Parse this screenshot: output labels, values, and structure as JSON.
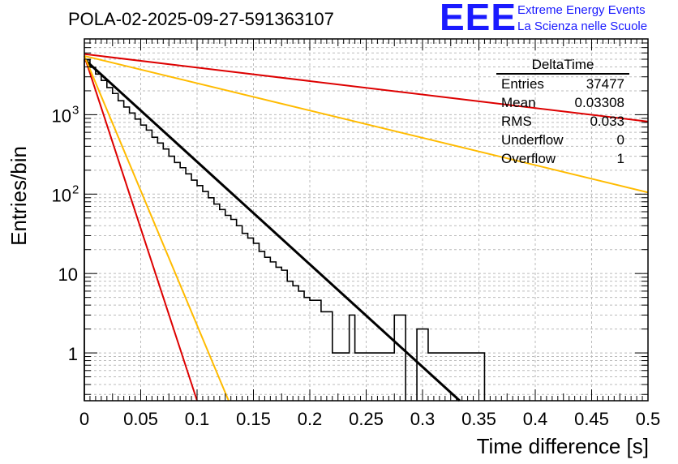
{
  "chart_data": {
    "type": "histogram",
    "title": "POLA-02-2025-09-27-591363107",
    "xlabel": "Time difference [s]",
    "ylabel": "Entries/bin",
    "xlim": [
      0,
      0.5
    ],
    "ylim": [
      0.25,
      9000
    ],
    "yscale": "log",
    "grid": true,
    "x_ticks": [
      "0",
      "0.05",
      "0.1",
      "0.15",
      "0.2",
      "0.25",
      "0.3",
      "0.35",
      "0.4",
      "0.45",
      "0.5"
    ],
    "x_tick_values": [
      0,
      0.05,
      0.1,
      0.15,
      0.2,
      0.25,
      0.3,
      0.35,
      0.4,
      0.45,
      0.5
    ],
    "y_ticks": [
      {
        "value": 1,
        "base": "1",
        "exp": ""
      },
      {
        "value": 10,
        "base": "10",
        "exp": ""
      },
      {
        "value": 100,
        "base": "10",
        "exp": "2"
      },
      {
        "value": 1000,
        "base": "10",
        "exp": "3"
      }
    ],
    "histogram": {
      "name": "DeltaTime",
      "bin_width": 0.005,
      "x_start": 0,
      "counts": [
        4900,
        3950,
        3250,
        2700,
        2200,
        1850,
        1500,
        1250,
        1050,
        880,
        740,
        640,
        520,
        440,
        370,
        300,
        250,
        215,
        180,
        150,
        128,
        108,
        90,
        75,
        64,
        54,
        48,
        40,
        32,
        28,
        24,
        19,
        16,
        14,
        12,
        11,
        8,
        7,
        6,
        5,
        4.6,
        4.6,
        3.3,
        3.3,
        1,
        1,
        1,
        3,
        1,
        1,
        1,
        1,
        1,
        1,
        1,
        3,
        3,
        0,
        0,
        2,
        2,
        1,
        1,
        1,
        1,
        1,
        1,
        1,
        1,
        1,
        1,
        0,
        0,
        0,
        0,
        0,
        0,
        0,
        0,
        0,
        0,
        0,
        0,
        0,
        0,
        0,
        0,
        0,
        0,
        0,
        0,
        0,
        0,
        0,
        0,
        0,
        0,
        0,
        0,
        0
      ]
    },
    "fit_lines": [
      {
        "name": "exponential fit",
        "color": "#000000",
        "x0": 0,
        "y0": 5000,
        "x1": 0.333,
        "y1": 0.25
      },
      {
        "name": "upper bound (fast)",
        "color": "#dd0000",
        "x0": 0,
        "y0": 5500,
        "x1": 0.1,
        "y1": 0.25
      },
      {
        "name": "mid bound (fast)",
        "color": "#ffbb00",
        "x0": 0,
        "y0": 5500,
        "x1": 0.128,
        "y1": 0.25
      },
      {
        "name": "mid bound (slow)",
        "color": "#ffbb00",
        "x0": 0,
        "y0": 5500,
        "x1": 0.5,
        "y1": 105
      },
      {
        "name": "lower bound (slow)",
        "color": "#dd0000",
        "x0": 0,
        "y0": 5800,
        "x1": 0.5,
        "y1": 820
      }
    ],
    "stats": {
      "title": "DeltaTime",
      "rows": [
        {
          "label": "Entries",
          "value": "37477"
        },
        {
          "label": "Mean",
          "value": "0.03308"
        },
        {
          "label": "RMS",
          "value": "0.033"
        },
        {
          "label": "Underflow",
          "value": "0"
        },
        {
          "label": "Overflow",
          "value": "1"
        }
      ]
    }
  },
  "logo": {
    "mark": "EEE",
    "line1": "Extreme Energy Events",
    "line2": "La Scienza nelle Scuole"
  }
}
